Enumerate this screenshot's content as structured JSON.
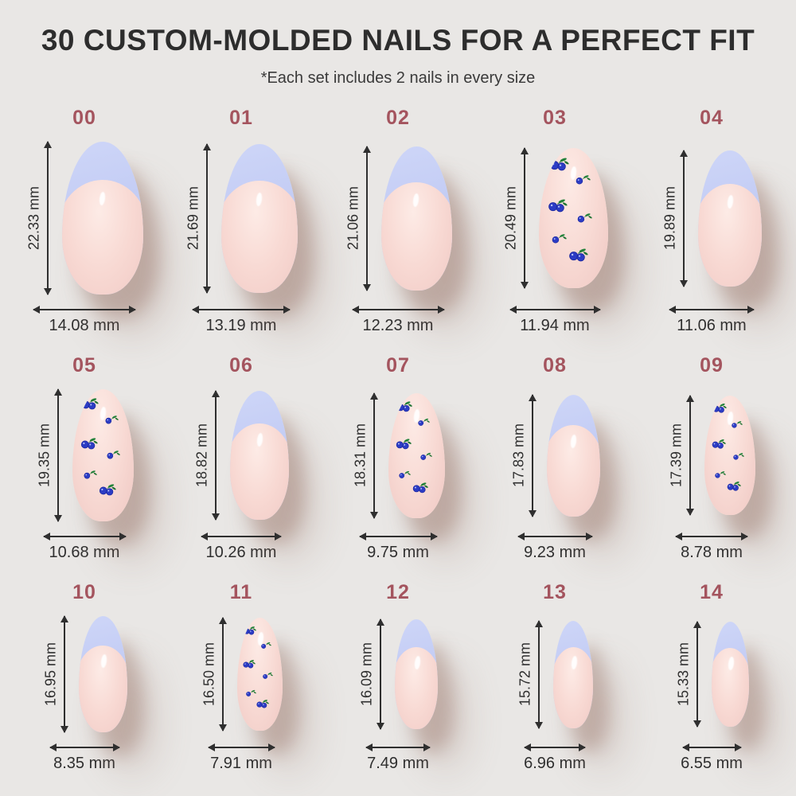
{
  "header": {
    "title": "30 CUSTOM-MOLDED NAILS FOR A PERFECT FIT",
    "subtitle": "*Each set includes 2 nails in every size"
  },
  "unit": "mm",
  "colors": {
    "background": "#e9e7e5",
    "title_text": "#2d2d2d",
    "size_label": "#a4545e",
    "measure_text": "#2f2f2f",
    "french_tip_lavender": "#c3ccf4",
    "nail_base_pink": "#f8d9d3",
    "berry_blue": "#2c3cc4",
    "leaf_green": "#22823a"
  },
  "sizes": [
    {
      "id": "00",
      "height_mm": 22.33,
      "width_mm": 14.08,
      "height_label": "22.33 mm",
      "width_label": "14.08 mm",
      "design": "french"
    },
    {
      "id": "01",
      "height_mm": 21.69,
      "width_mm": 13.19,
      "height_label": "21.69 mm",
      "width_label": "13.19 mm",
      "design": "french"
    },
    {
      "id": "02",
      "height_mm": 21.06,
      "width_mm": 12.23,
      "height_label": "21.06 mm",
      "width_label": "12.23 mm",
      "design": "french"
    },
    {
      "id": "03",
      "height_mm": 20.49,
      "width_mm": 11.94,
      "height_label": "20.49 mm",
      "width_label": "11.94 mm",
      "design": "berry"
    },
    {
      "id": "04",
      "height_mm": 19.89,
      "width_mm": 11.06,
      "height_label": "19.89 mm",
      "width_label": "11.06 mm",
      "design": "french"
    },
    {
      "id": "05",
      "height_mm": 19.35,
      "width_mm": 10.68,
      "height_label": "19.35 mm",
      "width_label": "10.68 mm",
      "design": "berry"
    },
    {
      "id": "06",
      "height_mm": 18.82,
      "width_mm": 10.26,
      "height_label": "18.82 mm",
      "width_label": "10.26 mm",
      "design": "french"
    },
    {
      "id": "07",
      "height_mm": 18.31,
      "width_mm": 9.75,
      "height_label": "18.31 mm",
      "width_label": "9.75 mm",
      "design": "berry"
    },
    {
      "id": "08",
      "height_mm": 17.83,
      "width_mm": 9.23,
      "height_label": "17.83 mm",
      "width_label": "9.23 mm",
      "design": "french"
    },
    {
      "id": "09",
      "height_mm": 17.39,
      "width_mm": 8.78,
      "height_label": "17.39 mm",
      "width_label": "8.78 mm",
      "design": "berry"
    },
    {
      "id": "10",
      "height_mm": 16.95,
      "width_mm": 8.35,
      "height_label": "16.95 mm",
      "width_label": "8.35 mm",
      "design": "french"
    },
    {
      "id": "11",
      "height_mm": 16.5,
      "width_mm": 7.91,
      "height_label": "16.50 mm",
      "width_label": "7.91 mm",
      "design": "berry"
    },
    {
      "id": "12",
      "height_mm": 16.09,
      "width_mm": 7.49,
      "height_label": "16.09 mm",
      "width_label": "7.49 mm",
      "design": "french"
    },
    {
      "id": "13",
      "height_mm": 15.72,
      "width_mm": 6.96,
      "height_label": "15.72 mm",
      "width_label": "6.96 mm",
      "design": "french"
    },
    {
      "id": "14",
      "height_mm": 15.33,
      "width_mm": 6.55,
      "height_label": "15.33 mm",
      "width_label": "6.55 mm",
      "design": "french"
    }
  ],
  "rows": [
    [
      "00",
      "01",
      "02",
      "03",
      "04"
    ],
    [
      "05",
      "06",
      "07",
      "08",
      "09"
    ],
    [
      "10",
      "11",
      "12",
      "13",
      "14"
    ]
  ]
}
